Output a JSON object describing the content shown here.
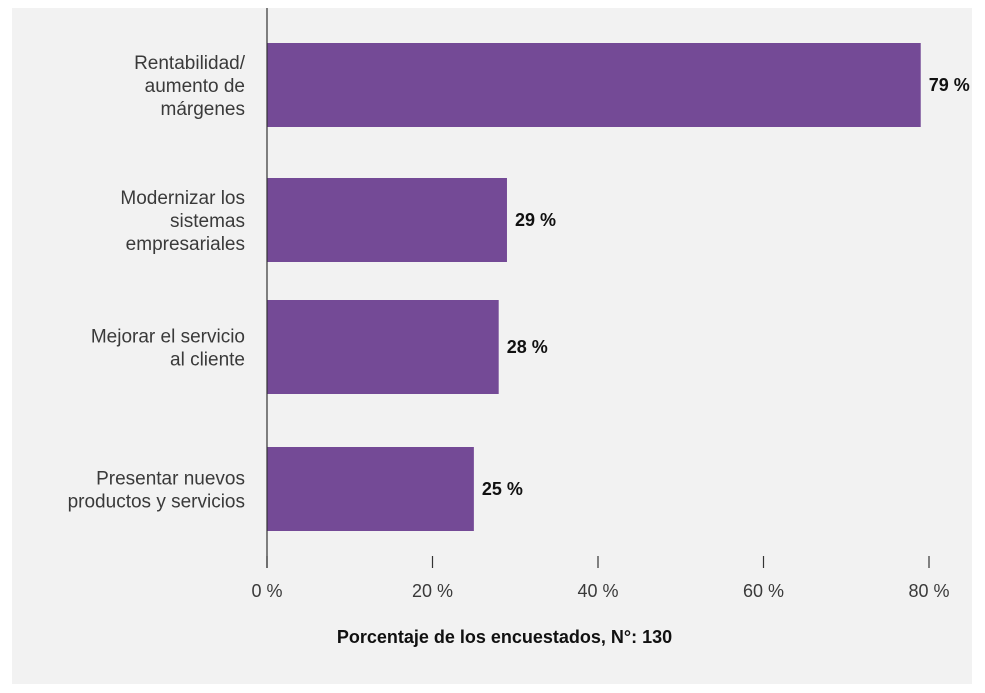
{
  "chart_data": {
    "type": "bar",
    "orientation": "horizontal",
    "categories": [
      [
        "Rentabilidad/",
        "aumento de",
        "márgenes"
      ],
      [
        "Modernizar los",
        "sistemas",
        "empresariales"
      ],
      [
        "Mejorar el servicio",
        "al cliente"
      ],
      [
        "Presentar nuevos",
        "productos y servicios"
      ]
    ],
    "values": [
      79,
      29,
      28,
      25
    ],
    "value_labels": [
      "79 %",
      "29 %",
      "28 %",
      "25 %"
    ],
    "xlim": [
      0,
      80
    ],
    "xticks": [
      0,
      20,
      40,
      60,
      80
    ],
    "xtick_labels": [
      "0 %",
      "20 %",
      "40 %",
      "60 %",
      "80 %"
    ],
    "xlabel": "Porcentaje de los encuestados, N°: 130",
    "grid": false,
    "bar_color": "#744a96",
    "background_color": "#f2f2f2"
  }
}
